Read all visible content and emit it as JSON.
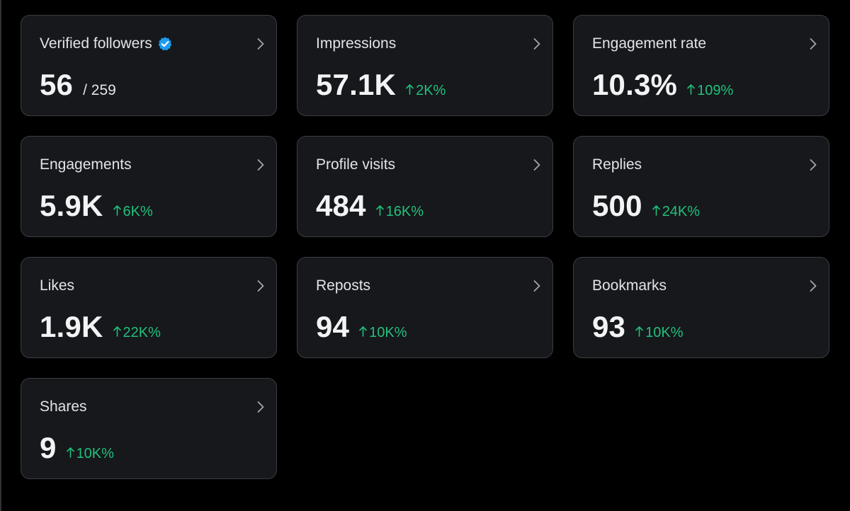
{
  "colors": {
    "background": "#000000",
    "card": "#16181c",
    "card_border": "#3a3d42",
    "text": "#e2e4e6",
    "value": "#f2f3f4",
    "positive": "#22c07a",
    "verified": "#1d9bf0"
  },
  "icons": {
    "verified": "verified-badge-icon",
    "chevron": "chevron-right-icon",
    "change": "arrow-up-icon"
  },
  "metrics": [
    {
      "label": "Verified followers",
      "value": "56",
      "total": "/ 259",
      "verified": true
    },
    {
      "label": "Impressions",
      "value": "57.1K",
      "change": "2K%"
    },
    {
      "label": "Engagement rate",
      "value": "10.3%",
      "change": "109%"
    },
    {
      "label": "Engagements",
      "value": "5.9K",
      "change": "6K%"
    },
    {
      "label": "Profile visits",
      "value": "484",
      "change": "16K%"
    },
    {
      "label": "Replies",
      "value": "500",
      "change": "24K%"
    },
    {
      "label": "Likes",
      "value": "1.9K",
      "change": "22K%"
    },
    {
      "label": "Reposts",
      "value": "94",
      "change": "10K%"
    },
    {
      "label": "Bookmarks",
      "value": "93",
      "change": "10K%"
    },
    {
      "label": "Shares",
      "value": "9",
      "change": "10K%"
    }
  ]
}
